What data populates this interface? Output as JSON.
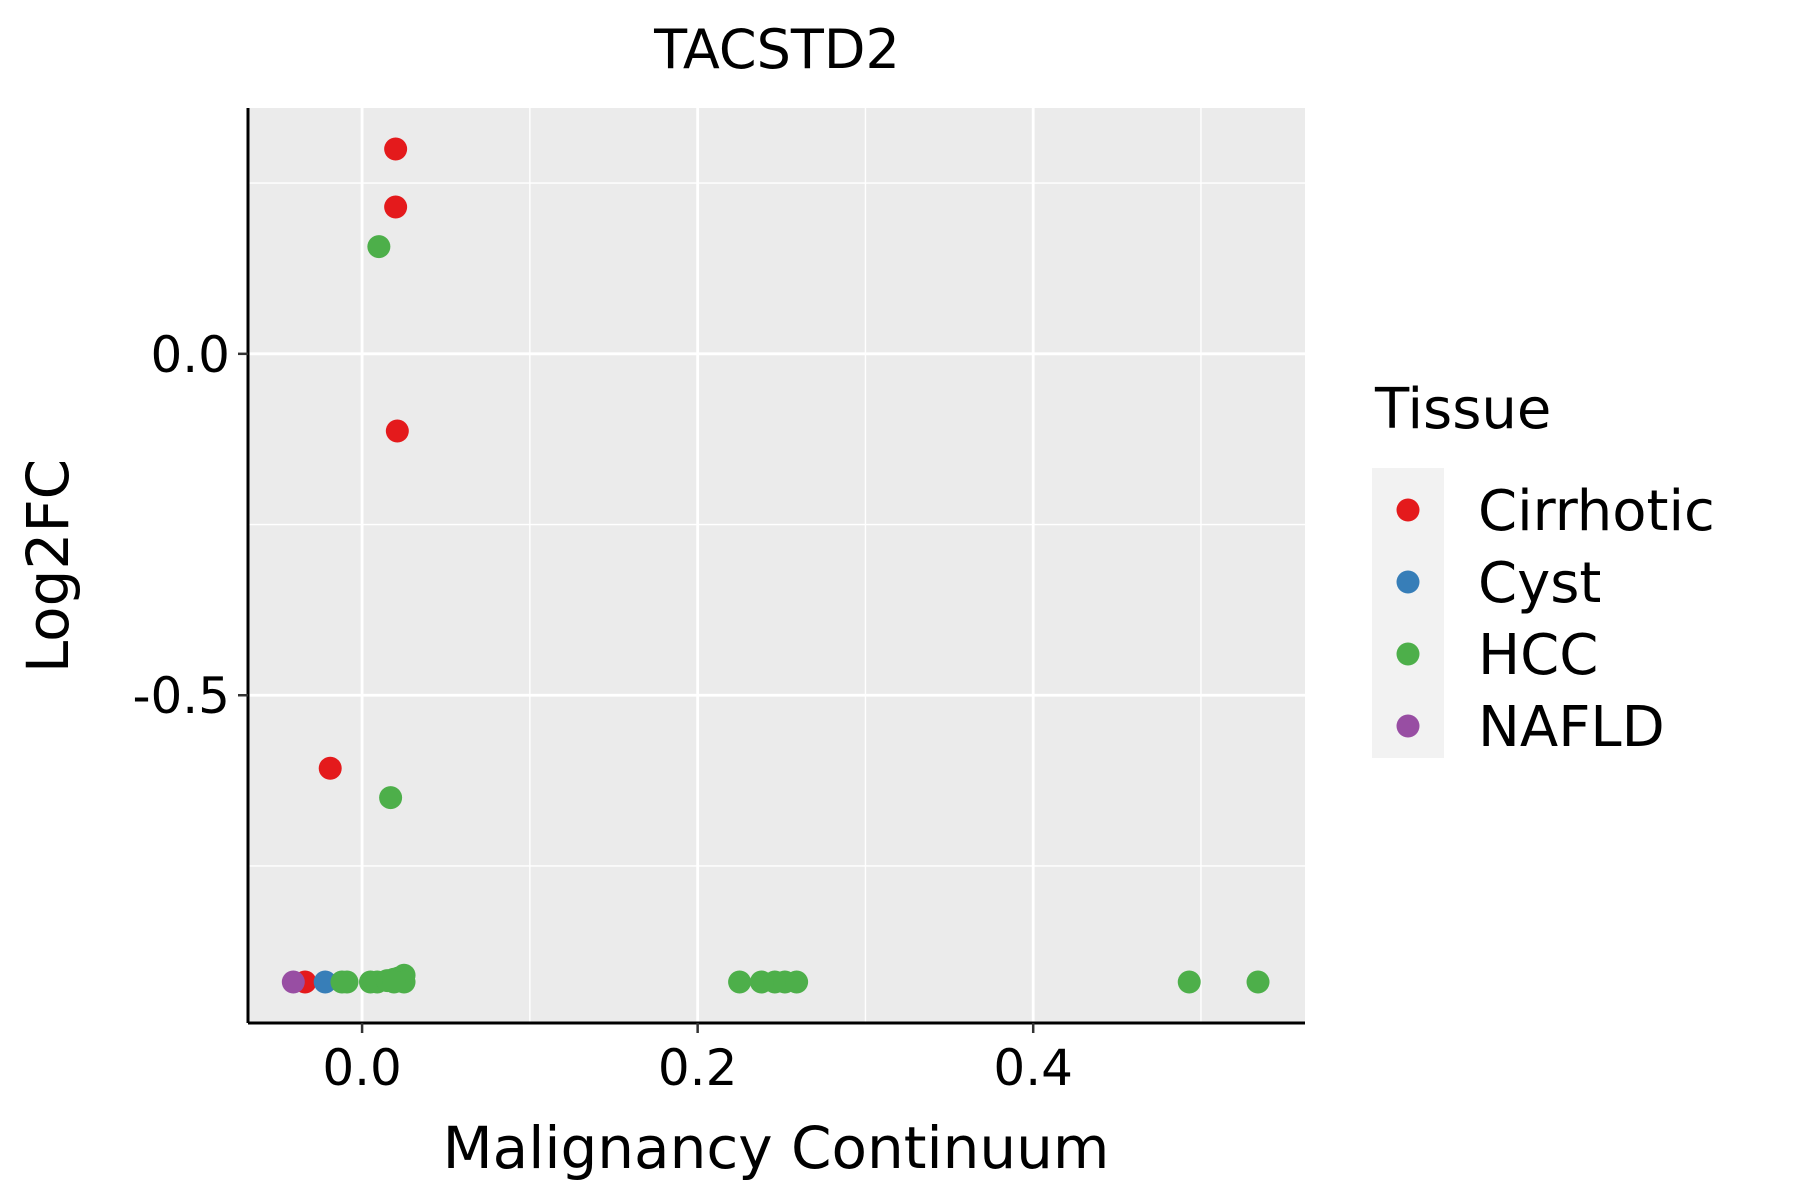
{
  "chart_data": {
    "type": "scatter",
    "title": "TACSTD2",
    "xlabel": "Malignancy Continuum",
    "ylabel": "Log2FC",
    "xlim": [
      -0.068,
      0.562
    ],
    "ylim": [
      -0.98,
      0.36
    ],
    "x_ticks": [
      0.0,
      0.2,
      0.4
    ],
    "x_tick_labels": [
      "0.0",
      "0.2",
      "0.4"
    ],
    "x_minor_grid": [
      0.1,
      0.3,
      0.5
    ],
    "y_ticks": [
      0.0,
      -0.5
    ],
    "y_tick_labels": [
      "0.0",
      "-0.5"
    ],
    "y_minor_grid": [
      0.25,
      -0.25,
      -0.75
    ],
    "grid": true,
    "legend": {
      "title": "Tissue",
      "position": "right",
      "entries": [
        {
          "label": "Cirrhotic",
          "color": "#E41A1C"
        },
        {
          "label": "Cyst",
          "color": "#377EB8"
        },
        {
          "label": "HCC",
          "color": "#4DAF4A"
        },
        {
          "label": "NAFLD",
          "color": "#984EA3"
        }
      ]
    },
    "series": [
      {
        "name": "Cirrhotic",
        "color": "#E41A1C",
        "points": [
          {
            "x": 0.02,
            "y": 0.3
          },
          {
            "x": 0.02,
            "y": 0.215
          },
          {
            "x": 0.021,
            "y": -0.113
          },
          {
            "x": -0.019,
            "y": -0.607
          },
          {
            "x": -0.034,
            "y": -0.92
          }
        ]
      },
      {
        "name": "Cyst",
        "color": "#377EB8",
        "points": [
          {
            "x": -0.022,
            "y": -0.92
          }
        ]
      },
      {
        "name": "HCC",
        "color": "#4DAF4A",
        "points": [
          {
            "x": 0.01,
            "y": 0.157
          },
          {
            "x": 0.017,
            "y": -0.65
          },
          {
            "x": -0.012,
            "y": -0.92
          },
          {
            "x": -0.009,
            "y": -0.92
          },
          {
            "x": 0.005,
            "y": -0.92
          },
          {
            "x": 0.009,
            "y": -0.92
          },
          {
            "x": 0.015,
            "y": -0.918
          },
          {
            "x": 0.019,
            "y": -0.916
          },
          {
            "x": 0.022,
            "y": -0.914
          },
          {
            "x": 0.025,
            "y": -0.91
          },
          {
            "x": 0.025,
            "y": -0.92
          },
          {
            "x": 0.019,
            "y": -0.92
          },
          {
            "x": 0.225,
            "y": -0.92
          },
          {
            "x": 0.238,
            "y": -0.92
          },
          {
            "x": 0.246,
            "y": -0.92
          },
          {
            "x": 0.252,
            "y": -0.92
          },
          {
            "x": 0.259,
            "y": -0.92
          },
          {
            "x": 0.493,
            "y": -0.92
          },
          {
            "x": 0.534,
            "y": -0.92
          }
        ]
      },
      {
        "name": "NAFLD",
        "color": "#984EA3",
        "points": [
          {
            "x": -0.041,
            "y": -0.92
          }
        ]
      }
    ]
  }
}
